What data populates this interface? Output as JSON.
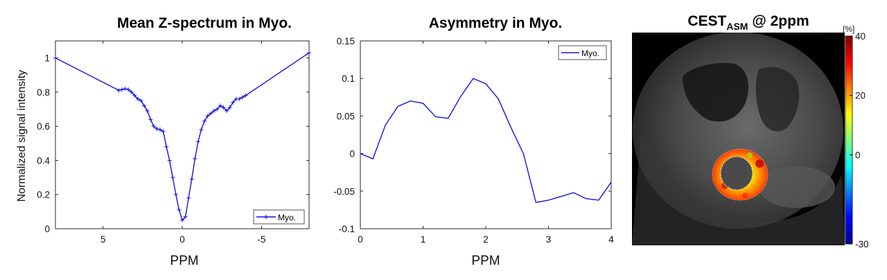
{
  "chart_data": [
    {
      "type": "line",
      "title": "Mean Z-spectrum in Myo.",
      "xlabel": "PPM",
      "ylabel": "Normalized signal intensity",
      "xlim": [
        8,
        -8
      ],
      "ylim": [
        0,
        1.1
      ],
      "x_reversed": true,
      "xticks": [
        5,
        0,
        -5
      ],
      "yticks": [
        0,
        0.2,
        0.4,
        0.6,
        0.8,
        1
      ],
      "legend": {
        "position": "bottom-right",
        "entries": [
          "Myo."
        ]
      },
      "series": [
        {
          "name": "Myo.",
          "color": "#1414dc",
          "marker": "plus",
          "x": [
            8,
            4,
            3.8,
            3.6,
            3.4,
            3.2,
            3,
            2.8,
            2.6,
            2.4,
            2.2,
            2,
            1.8,
            1.6,
            1.4,
            1.2,
            1,
            0.8,
            0.6,
            0.4,
            0.2,
            0,
            -0.2,
            -0.4,
            -0.6,
            -0.8,
            -1,
            -1.2,
            -1.4,
            -1.6,
            -1.8,
            -2,
            -2.2,
            -2.4,
            -2.6,
            -2.8,
            -3,
            -3.2,
            -3.4,
            -3.6,
            -3.8,
            -4,
            -8
          ],
          "y": [
            1.0,
            0.81,
            0.815,
            0.82,
            0.815,
            0.8,
            0.78,
            0.76,
            0.75,
            0.72,
            0.69,
            0.64,
            0.6,
            0.585,
            0.58,
            0.57,
            0.48,
            0.4,
            0.3,
            0.2,
            0.11,
            0.05,
            0.07,
            0.18,
            0.29,
            0.41,
            0.51,
            0.58,
            0.63,
            0.66,
            0.675,
            0.69,
            0.7,
            0.72,
            0.71,
            0.69,
            0.71,
            0.74,
            0.76,
            0.76,
            0.77,
            0.78,
            1.03
          ]
        }
      ]
    },
    {
      "type": "line",
      "title": "Asymmetry in Myo.",
      "xlabel": "PPM",
      "ylabel": "",
      "xlim": [
        0,
        4
      ],
      "ylim": [
        -0.1,
        0.15
      ],
      "xticks": [
        0,
        1,
        2,
        3,
        4
      ],
      "yticks": [
        -0.1,
        -0.05,
        0,
        0.05,
        0.1,
        0.15
      ],
      "legend": {
        "position": "top-right",
        "entries": [
          "Myo."
        ]
      },
      "series": [
        {
          "name": "Myo.",
          "color": "#1414dc",
          "x": [
            0,
            0.2,
            0.4,
            0.6,
            0.8,
            1.0,
            1.2,
            1.4,
            1.6,
            1.8,
            2.0,
            2.2,
            2.4,
            2.6,
            2.8,
            3.0,
            3.2,
            3.4,
            3.6,
            3.8,
            4.0
          ],
          "y": [
            0.0,
            -0.007,
            0.038,
            0.063,
            0.07,
            0.067,
            0.049,
            0.047,
            0.076,
            0.1,
            0.093,
            0.073,
            0.035,
            0.0,
            -0.065,
            -0.062,
            -0.057,
            -0.052,
            -0.06,
            -0.062,
            -0.038
          ]
        }
      ]
    },
    {
      "type": "heatmap",
      "title_main": "CEST",
      "title_sub": "ASM",
      "title_rest": " @ 2ppm",
      "colorbar": {
        "unit": "[%]",
        "range": [
          -30,
          40
        ],
        "ticks": [
          40,
          20,
          0,
          -30
        ],
        "colormap": "jet"
      },
      "background": "grayscale cardiac MRI (short-axis)",
      "overlay": "CEST asymmetry map on myocardium ring"
    }
  ]
}
